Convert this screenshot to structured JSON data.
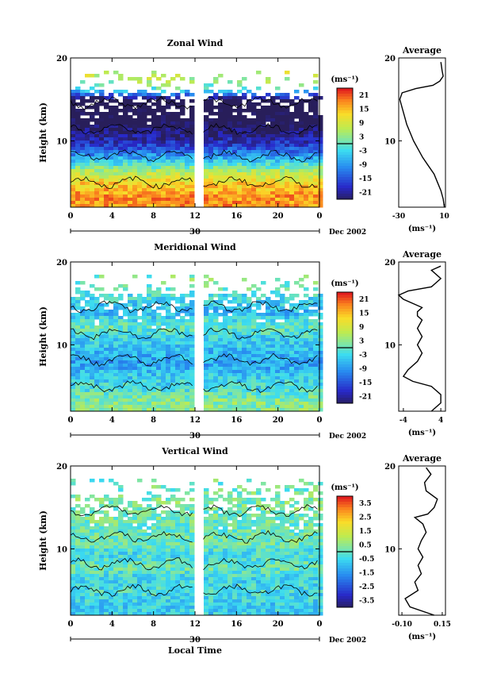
{
  "chart_data": [
    {
      "type": "heatmap",
      "title": "Zonal Wind",
      "ylabel": "Height (km)",
      "xlabel": "",
      "date_label": "Dec 2002",
      "day_label": "30",
      "xlim": [
        0,
        24
      ],
      "ylim": [
        2,
        20
      ],
      "x_ticks": [
        "0",
        "4",
        "8",
        "12",
        "16",
        "20",
        "0"
      ],
      "y_ticks": [
        "10",
        "20"
      ],
      "colorbar_unit": "(ms⁻¹)",
      "colorbar_ticks": [
        "21",
        "15",
        "9",
        "3",
        "-3",
        "-9",
        "-15",
        "-21"
      ],
      "colorbar_range": [
        -24,
        24
      ],
      "data_gap_hours": [
        11.9,
        12.8
      ],
      "data_rows": [
        {
          "height_km": 3.5,
          "value": 18
        },
        {
          "height_km": 5.0,
          "value": 14
        },
        {
          "height_km": 6.5,
          "value": 6
        },
        {
          "height_km": 8.0,
          "value": -6
        },
        {
          "height_km": 9.5,
          "value": -16
        },
        {
          "height_km": 11.0,
          "value": -22
        },
        {
          "height_km": 12.5,
          "value": -26
        },
        {
          "height_km": 15.0,
          "value": -28
        },
        {
          "height_km": 16.5,
          "value": 0
        },
        {
          "height_km": 18.0,
          "value": 8
        }
      ],
      "profile": {
        "title": "Average",
        "xlabel": "(ms⁻¹)",
        "xlim": [
          -30,
          11
        ],
        "x_ticks": [
          "-30",
          "10"
        ],
        "y_ticks": [
          "10",
          "20"
        ],
        "points": [
          [
            10,
            2
          ],
          [
            9,
            3
          ],
          [
            7,
            4
          ],
          [
            4,
            5
          ],
          [
            1,
            6
          ],
          [
            -4,
            7
          ],
          [
            -9,
            8
          ],
          [
            -13,
            9
          ],
          [
            -17,
            10
          ],
          [
            -20,
            11
          ],
          [
            -23,
            12
          ],
          [
            -25,
            13
          ],
          [
            -27,
            14
          ],
          [
            -29,
            15
          ],
          [
            -27,
            15.8
          ],
          [
            -15,
            16.3
          ],
          [
            0,
            16.7
          ],
          [
            6,
            17.2
          ],
          [
            9,
            17.8
          ],
          [
            8,
            18.5
          ],
          [
            7,
            19.5
          ]
        ]
      }
    },
    {
      "type": "heatmap",
      "title": "Meridional Wind",
      "ylabel": "Height (km)",
      "xlabel": "",
      "date_label": "Dec 2002",
      "day_label": "30",
      "xlim": [
        0,
        24
      ],
      "ylim": [
        2,
        20
      ],
      "x_ticks": [
        "0",
        "4",
        "8",
        "12",
        "16",
        "20",
        "0"
      ],
      "y_ticks": [
        "10",
        "20"
      ],
      "colorbar_unit": "(ms⁻¹)",
      "colorbar_ticks": [
        "21",
        "15",
        "9",
        "3",
        "-3",
        "-9",
        "-15",
        "-21"
      ],
      "colorbar_range": [
        -24,
        24
      ],
      "data_gap_hours": [
        11.9,
        12.8
      ],
      "data_rows": [
        {
          "height_km": 3.5,
          "value": 3
        },
        {
          "height_km": 5.0,
          "value": -2
        },
        {
          "height_km": 6.5,
          "value": -4
        },
        {
          "height_km": 8.0,
          "value": -8
        },
        {
          "height_km": 9.5,
          "value": -5
        },
        {
          "height_km": 11.0,
          "value": -3
        },
        {
          "height_km": 12.5,
          "value": 1
        },
        {
          "height_km": 14.0,
          "value": -6
        },
        {
          "height_km": 16.0,
          "value": -2
        },
        {
          "height_km": 18.0,
          "value": 2
        }
      ],
      "profile": {
        "title": "Average",
        "xlabel": "(ms⁻¹)",
        "xlim": [
          -5,
          5
        ],
        "x_ticks": [
          "-4",
          "4"
        ],
        "y_ticks": [
          "10",
          "20"
        ],
        "points": [
          [
            2,
            2
          ],
          [
            4,
            3
          ],
          [
            4,
            4
          ],
          [
            2,
            5
          ],
          [
            -2,
            5.6
          ],
          [
            -4,
            6.2
          ],
          [
            -3,
            7
          ],
          [
            -1,
            8
          ],
          [
            0,
            9
          ],
          [
            -1,
            10
          ],
          [
            0,
            11
          ],
          [
            -1,
            12
          ],
          [
            0,
            13
          ],
          [
            -1,
            13.5
          ],
          [
            -1,
            14
          ],
          [
            0,
            14.5
          ],
          [
            -4,
            15.5
          ],
          [
            -5,
            16
          ],
          [
            -3,
            16.5
          ],
          [
            2,
            17
          ],
          [
            3,
            17.5
          ],
          [
            4,
            18
          ],
          [
            2,
            19
          ],
          [
            4,
            19.5
          ]
        ]
      }
    },
    {
      "type": "heatmap",
      "title": "Vertical Wind",
      "ylabel": "Height (km)",
      "xlabel": "Local Time",
      "date_label": "Dec 2002",
      "day_label": "30",
      "xlim": [
        0,
        24
      ],
      "ylim": [
        2,
        20
      ],
      "x_ticks": [
        "0",
        "4",
        "8",
        "12",
        "16",
        "20",
        "0"
      ],
      "y_ticks": [
        "10",
        "20"
      ],
      "colorbar_unit": "(ms⁻¹)",
      "colorbar_ticks": [
        "3.5",
        "2.5",
        "1.5",
        "0.5",
        "-0.5",
        "-1.5",
        "-2.5",
        "-3.5"
      ],
      "colorbar_range": [
        -4,
        4
      ],
      "data_gap_hours": [
        11.9,
        12.8
      ],
      "data_rows": [
        {
          "height_km": 3.5,
          "value": -0.6
        },
        {
          "height_km": 5.0,
          "value": -0.3
        },
        {
          "height_km": 6.5,
          "value": -0.5
        },
        {
          "height_km": 8.0,
          "value": 0.2
        },
        {
          "height_km": 9.5,
          "value": -0.4
        },
        {
          "height_km": 11.0,
          "value": 0.3
        },
        {
          "height_km": 12.5,
          "value": 0.1
        },
        {
          "height_km": 14.0,
          "value": 0.3
        },
        {
          "height_km": 16.0,
          "value": 0.4
        },
        {
          "height_km": 18.0,
          "value": 0.2
        }
      ],
      "profile": {
        "title": "Average",
        "xlabel": "(ms⁻¹)",
        "xlim": [
          -0.12,
          0.17
        ],
        "x_ticks": [
          "-0.10",
          "0.15"
        ],
        "y_ticks": [
          "10",
          "20"
        ],
        "points": [
          [
            0.1,
            2
          ],
          [
            -0.05,
            3
          ],
          [
            -0.08,
            4
          ],
          [
            0.0,
            5
          ],
          [
            -0.02,
            6
          ],
          [
            0.02,
            7
          ],
          [
            0.0,
            8
          ],
          [
            0.03,
            9
          ],
          [
            0.0,
            10
          ],
          [
            0.02,
            11
          ],
          [
            0.05,
            12
          ],
          [
            0.03,
            13
          ],
          [
            -0.02,
            13.8
          ],
          [
            0.06,
            14.2
          ],
          [
            0.1,
            15
          ],
          [
            0.12,
            16
          ],
          [
            0.05,
            17
          ],
          [
            0.04,
            18
          ],
          [
            0.08,
            19
          ],
          [
            0.05,
            19.8
          ]
        ]
      }
    }
  ]
}
